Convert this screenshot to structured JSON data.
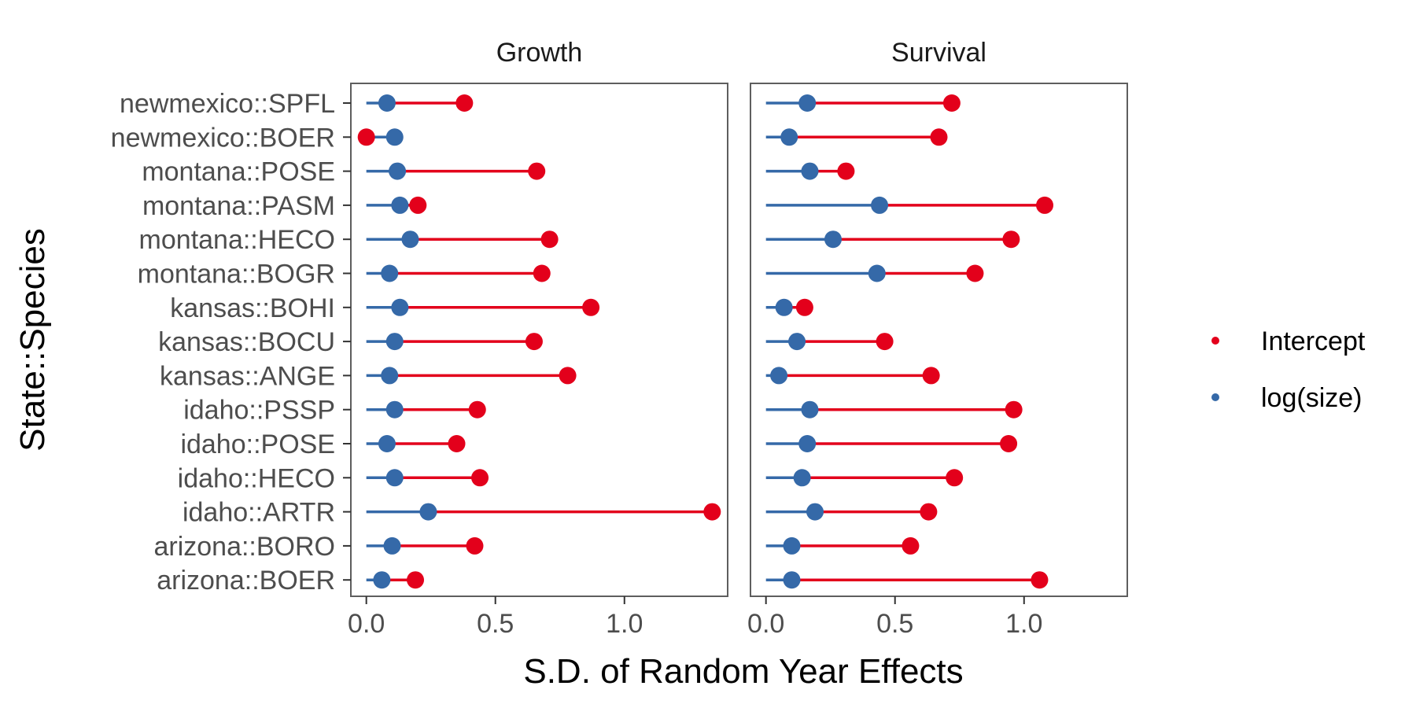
{
  "chart_data": {
    "type": "dot-range",
    "xlabel": "S.D. of Random Year Effects",
    "ylabel": "State::Species",
    "xlim": [
      -0.06,
      1.4
    ],
    "x_ticks": [
      0.0,
      0.5,
      1.0
    ],
    "x_tick_labels": [
      "0.0",
      "0.5",
      "1.0"
    ],
    "grid": false,
    "legend_position": "right",
    "categories": [
      "newmexico::SPFL",
      "newmexico::BOER",
      "montana::POSE",
      "montana::PASM",
      "montana::HECO",
      "montana::BOGR",
      "kansas::BOHI",
      "kansas::BOCU",
      "kansas::ANGE",
      "idaho::PSSP",
      "idaho::POSE",
      "idaho::HECO",
      "idaho::ARTR",
      "arizona::BORO",
      "arizona::BOER"
    ],
    "series": [
      {
        "name": "Intercept",
        "color": "#e3001b"
      },
      {
        "name": "log(size)",
        "color": "#3569a8"
      }
    ],
    "panels": [
      {
        "title": "Growth",
        "values": {
          "Intercept": [
            0.38,
            0.0,
            0.66,
            0.2,
            0.71,
            0.68,
            0.87,
            0.65,
            0.78,
            0.43,
            0.35,
            0.44,
            1.34,
            0.42,
            0.19
          ],
          "log(size)": [
            0.08,
            0.11,
            0.12,
            0.13,
            0.17,
            0.09,
            0.13,
            0.11,
            0.09,
            0.11,
            0.08,
            0.11,
            0.24,
            0.1,
            0.06
          ]
        }
      },
      {
        "title": "Survival",
        "values": {
          "Intercept": [
            0.72,
            0.67,
            0.31,
            1.08,
            0.95,
            0.81,
            0.15,
            0.46,
            0.64,
            0.96,
            0.94,
            0.73,
            0.63,
            0.56,
            1.06
          ],
          "log(size)": [
            0.16,
            0.09,
            0.17,
            0.44,
            0.26,
            0.43,
            0.07,
            0.12,
            0.05,
            0.17,
            0.16,
            0.14,
            0.19,
            0.1,
            0.1
          ]
        }
      }
    ]
  }
}
